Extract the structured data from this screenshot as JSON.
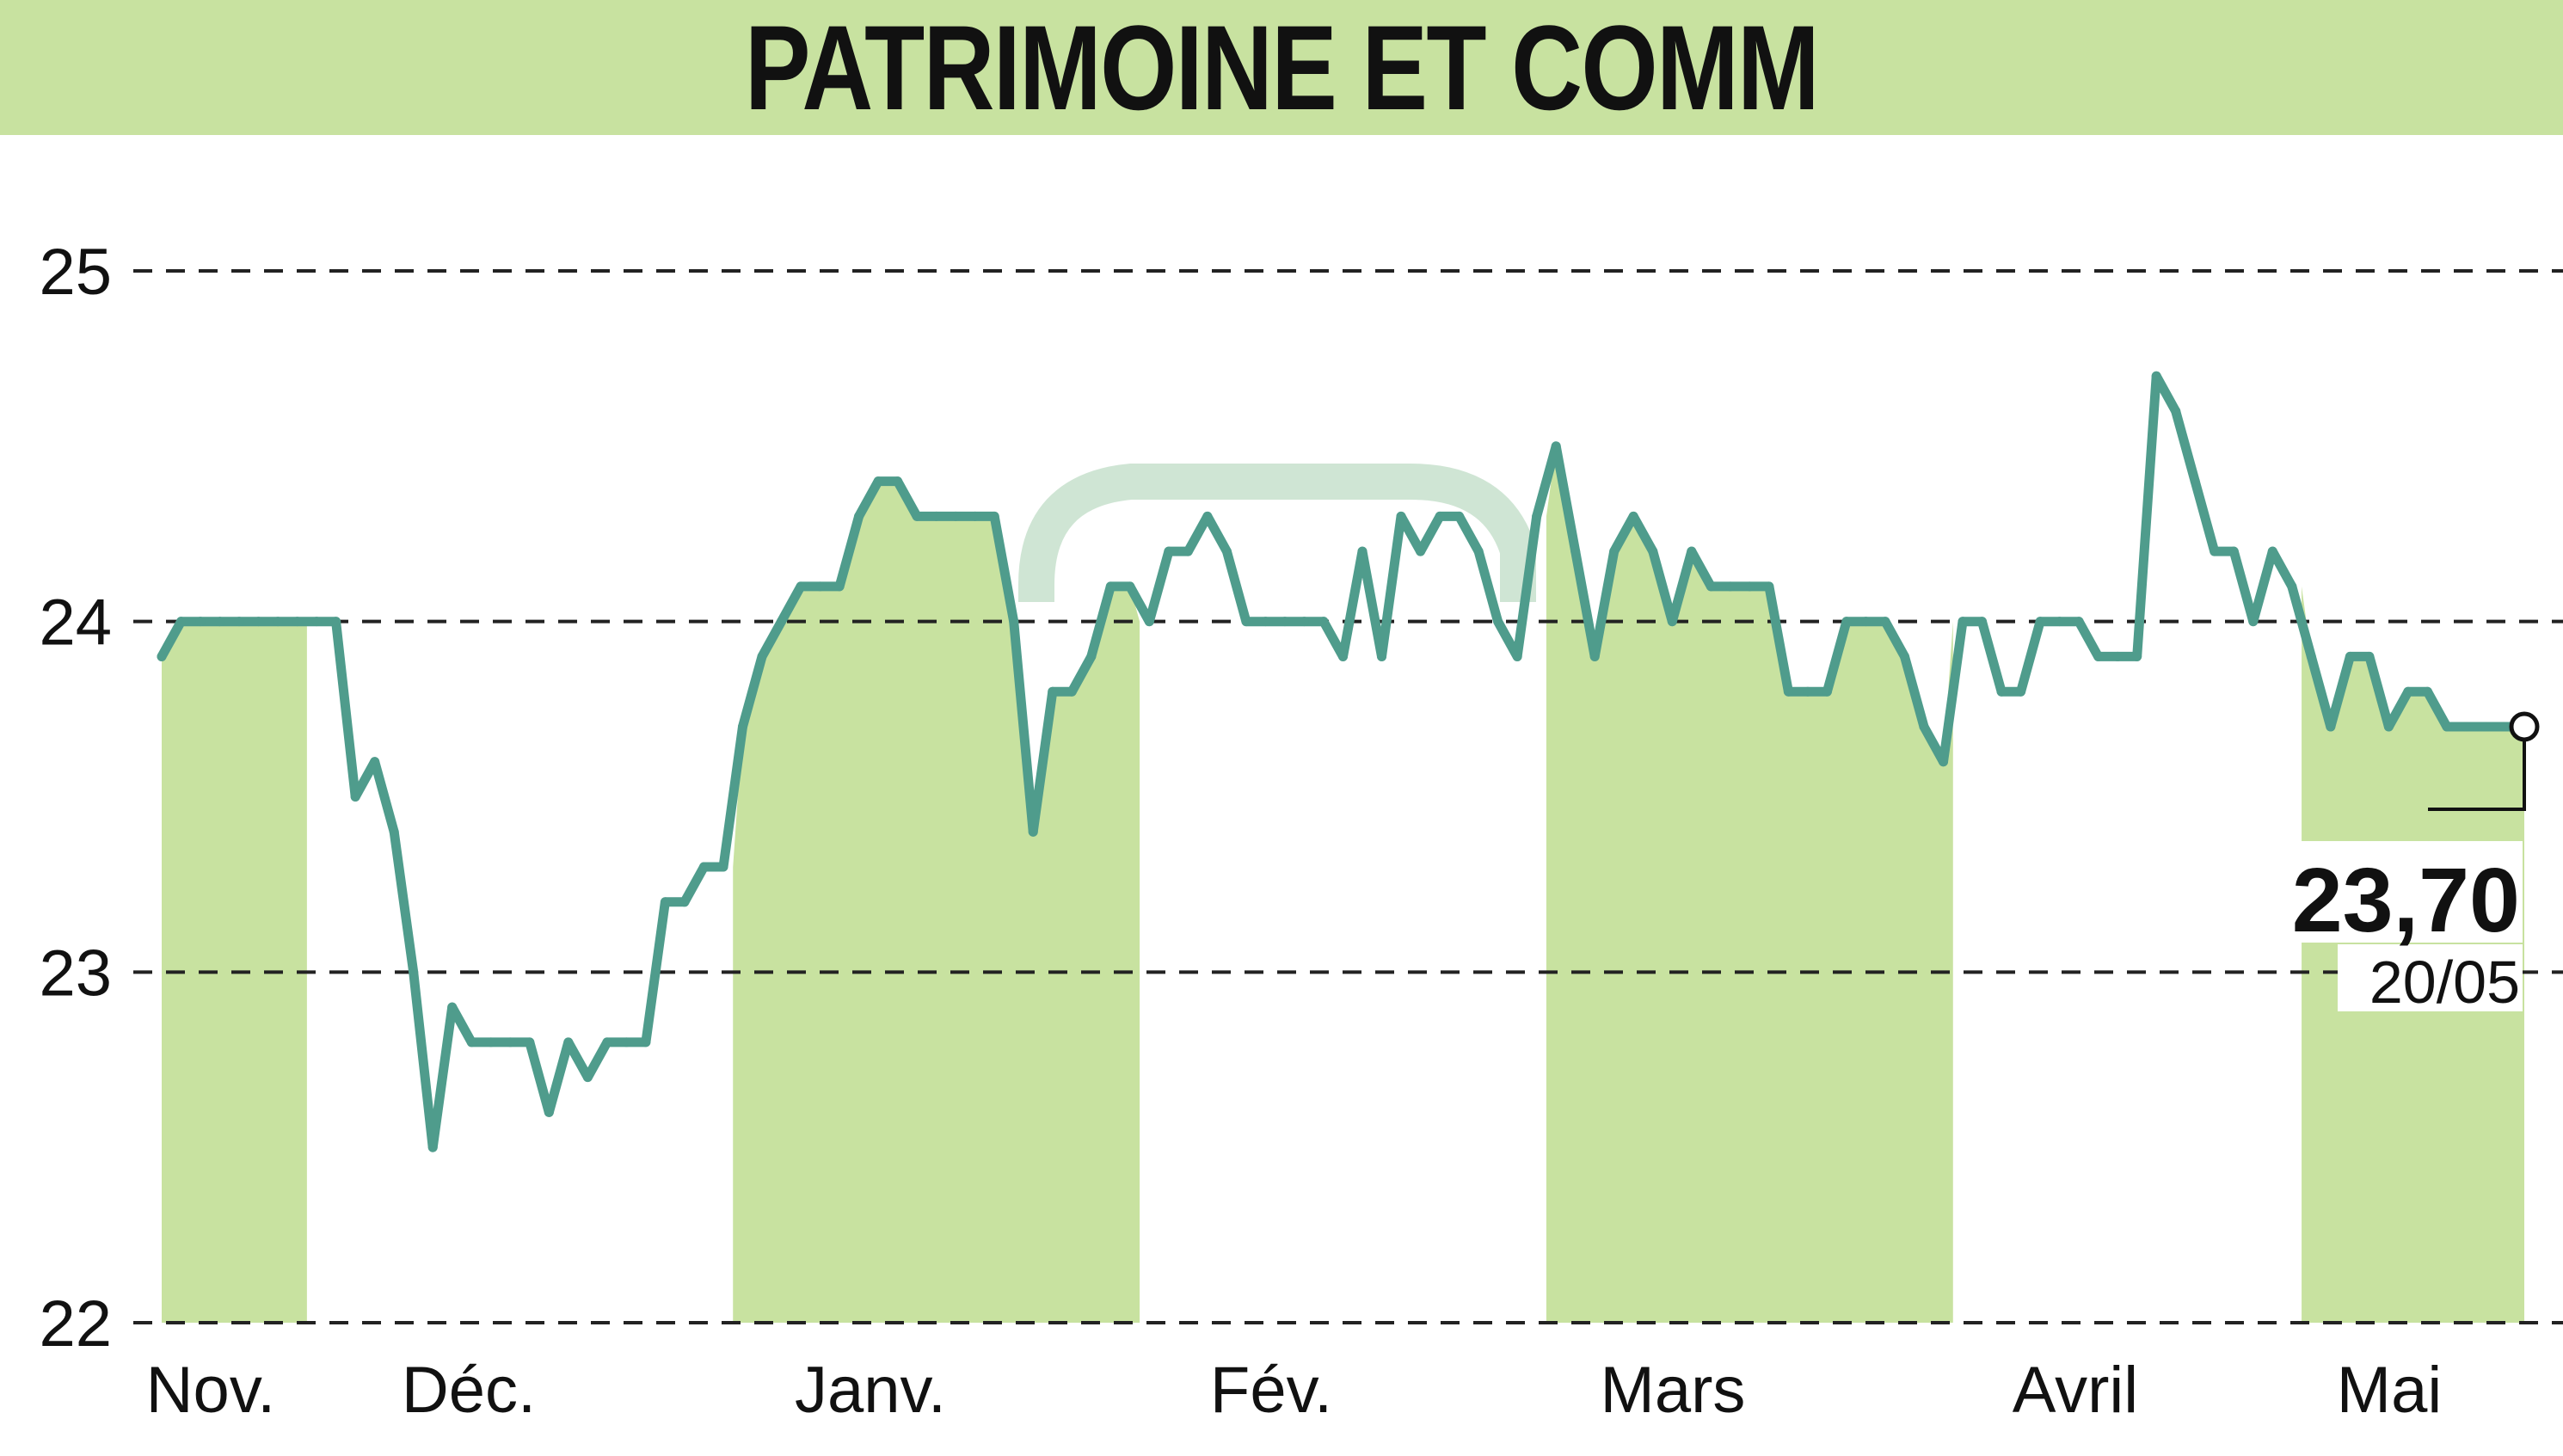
{
  "colors": {
    "band": "#c8e2a0",
    "title_bg": "#c8e2a0",
    "line": "#4f9c8c",
    "grid": "#222222",
    "text": "#111111",
    "watermark": "#a8cfb0"
  },
  "chart_data": {
    "type": "line",
    "title": "PATRIMOINE ET COMM",
    "xlabel": "",
    "ylabel": "",
    "ylim": [
      22,
      25
    ],
    "yticks": [
      22,
      23,
      24,
      25
    ],
    "ytick_labels": [
      "22",
      "23",
      "24",
      "25"
    ],
    "months": [
      {
        "label": "Nov.",
        "start": 0,
        "end": 8
      },
      {
        "label": "Déc.",
        "start": 8,
        "end": 29
      },
      {
        "label": "Janv.",
        "start": 29,
        "end": 51
      },
      {
        "label": "Fév.",
        "start": 51,
        "end": 71
      },
      {
        "label": "Mars",
        "start": 71,
        "end": 93
      },
      {
        "label": "Avril",
        "start": 93,
        "end": 110
      },
      {
        "label": "Mai",
        "start": 110,
        "end": 123
      }
    ],
    "grid": "horizontal-dashed",
    "series": [
      {
        "values": [
          23.9,
          24.0,
          24.0,
          24.0,
          24.0,
          24.0,
          24.0,
          24.0,
          24.0,
          24.0,
          23.5,
          23.6,
          23.4,
          23.0,
          22.5,
          22.9,
          22.8,
          22.8,
          22.8,
          22.8,
          22.6,
          22.8,
          22.7,
          22.8,
          22.8,
          22.8,
          23.2,
          23.2,
          23.3,
          23.3,
          23.7,
          23.9,
          24.0,
          24.1,
          24.1,
          24.1,
          24.3,
          24.4,
          24.4,
          24.3,
          24.3,
          24.3,
          24.3,
          24.3,
          24.0,
          23.4,
          23.8,
          23.8,
          23.9,
          24.1,
          24.1,
          24.0,
          24.2,
          24.2,
          24.3,
          24.2,
          24.0,
          24.0,
          24.0,
          24.0,
          24.0,
          23.9,
          24.2,
          23.9,
          24.3,
          24.2,
          24.3,
          24.3,
          24.2,
          24.0,
          23.9,
          24.3,
          24.5,
          24.2,
          23.9,
          24.2,
          24.3,
          24.2,
          24.0,
          24.2,
          24.1,
          24.1,
          24.1,
          24.1,
          23.8,
          23.8,
          23.8,
          24.0,
          24.0,
          24.0,
          23.9,
          23.7,
          23.6,
          24.0,
          24.0,
          23.8,
          23.8,
          24.0,
          24.0,
          24.0,
          23.9,
          23.9,
          23.9,
          24.7,
          24.6,
          24.4,
          24.2,
          24.2,
          24.0,
          24.2,
          24.1,
          23.9,
          23.7,
          23.9,
          23.9,
          23.7,
          23.8,
          23.8,
          23.7,
          23.7,
          23.7,
          23.7,
          23.7
        ]
      }
    ],
    "last_value": "23,70",
    "last_date": "20/05"
  }
}
